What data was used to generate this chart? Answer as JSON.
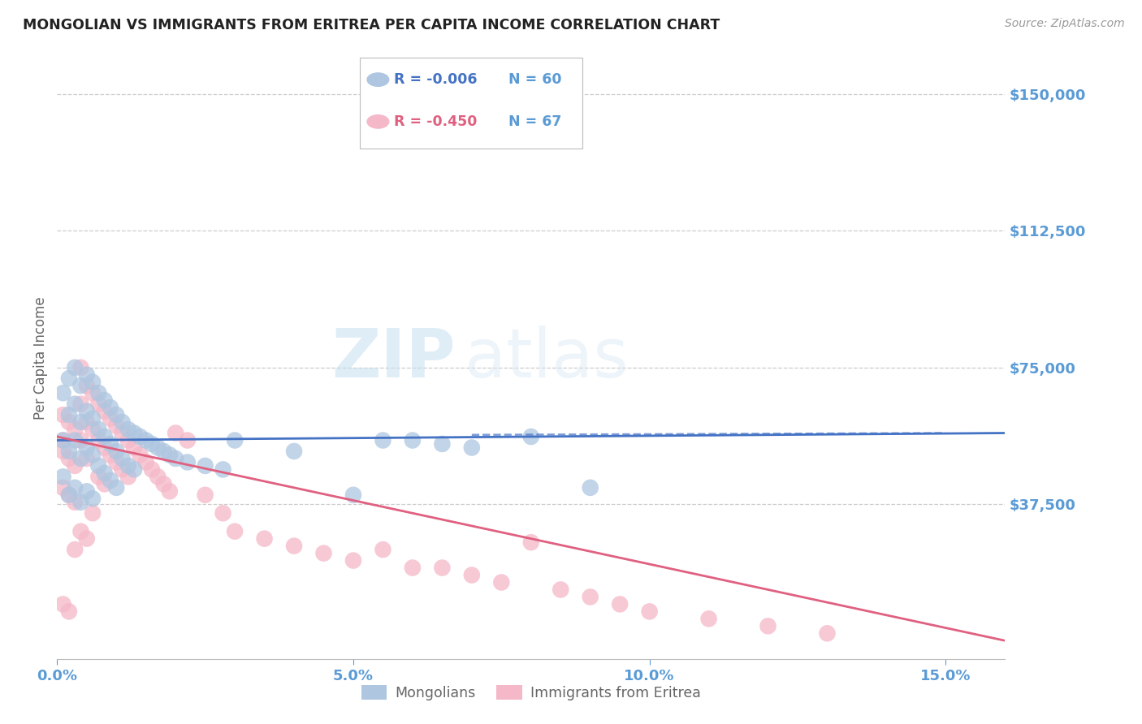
{
  "title": "MONGOLIAN VS IMMIGRANTS FROM ERITREA PER CAPITA INCOME CORRELATION CHART",
  "source": "Source: ZipAtlas.com",
  "ylabel": "Per Capita Income",
  "ytick_labels": [
    "$37,500",
    "$75,000",
    "$112,500",
    "$150,000"
  ],
  "ytick_values": [
    37500,
    75000,
    112500,
    150000
  ],
  "xlim": [
    0.0,
    0.16
  ],
  "ylim": [
    -5000,
    160000
  ],
  "legend1_r": "-0.006",
  "legend1_n": "60",
  "legend2_r": "-0.450",
  "legend2_n": "67",
  "legend_label1": "Mongolians",
  "legend_label2": "Immigrants from Eritrea",
  "color_blue": "#AEC6E0",
  "color_pink": "#F5B8C8",
  "line_color_blue": "#4472C4",
  "line_color_pink": "#E06080",
  "watermark_zip": "ZIP",
  "watermark_atlas": "atlas",
  "title_color": "#222222",
  "axis_color": "#5B9BD5",
  "mongolian_x": [
    0.001,
    0.001,
    0.001,
    0.002,
    0.002,
    0.002,
    0.002,
    0.003,
    0.003,
    0.003,
    0.003,
    0.004,
    0.004,
    0.004,
    0.004,
    0.005,
    0.005,
    0.005,
    0.005,
    0.006,
    0.006,
    0.006,
    0.006,
    0.007,
    0.007,
    0.007,
    0.008,
    0.008,
    0.008,
    0.009,
    0.009,
    0.009,
    0.01,
    0.01,
    0.01,
    0.011,
    0.011,
    0.012,
    0.012,
    0.013,
    0.013,
    0.014,
    0.015,
    0.016,
    0.017,
    0.018,
    0.019,
    0.02,
    0.022,
    0.025,
    0.028,
    0.03,
    0.04,
    0.05,
    0.055,
    0.06,
    0.065,
    0.07,
    0.08,
    0.09
  ],
  "mongolian_y": [
    68000,
    55000,
    45000,
    72000,
    62000,
    52000,
    40000,
    75000,
    65000,
    55000,
    42000,
    70000,
    60000,
    50000,
    38000,
    73000,
    63000,
    53000,
    41000,
    71000,
    61000,
    51000,
    39000,
    68000,
    58000,
    48000,
    66000,
    56000,
    46000,
    64000,
    54000,
    44000,
    62000,
    52000,
    42000,
    60000,
    50000,
    58000,
    48000,
    57000,
    47000,
    56000,
    55000,
    54000,
    53000,
    52000,
    51000,
    50000,
    49000,
    48000,
    47000,
    55000,
    52000,
    40000,
    55000,
    55000,
    54000,
    53000,
    56000,
    42000
  ],
  "eritrea_x": [
    0.001,
    0.001,
    0.001,
    0.001,
    0.002,
    0.002,
    0.002,
    0.002,
    0.003,
    0.003,
    0.003,
    0.003,
    0.004,
    0.004,
    0.004,
    0.004,
    0.005,
    0.005,
    0.005,
    0.005,
    0.006,
    0.006,
    0.006,
    0.007,
    0.007,
    0.007,
    0.008,
    0.008,
    0.008,
    0.009,
    0.009,
    0.01,
    0.01,
    0.011,
    0.011,
    0.012,
    0.012,
    0.013,
    0.014,
    0.015,
    0.016,
    0.017,
    0.018,
    0.019,
    0.02,
    0.022,
    0.025,
    0.028,
    0.03,
    0.035,
    0.04,
    0.045,
    0.05,
    0.055,
    0.06,
    0.065,
    0.07,
    0.075,
    0.08,
    0.085,
    0.09,
    0.095,
    0.1,
    0.11,
    0.12,
    0.13,
    0.001
  ],
  "eritrea_y": [
    62000,
    52000,
    42000,
    10000,
    60000,
    50000,
    40000,
    8000,
    58000,
    48000,
    38000,
    25000,
    75000,
    65000,
    55000,
    30000,
    70000,
    60000,
    50000,
    28000,
    68000,
    58000,
    35000,
    65000,
    55000,
    45000,
    63000,
    53000,
    43000,
    61000,
    51000,
    59000,
    49000,
    57000,
    47000,
    55000,
    45000,
    53000,
    51000,
    49000,
    47000,
    45000,
    43000,
    41000,
    57000,
    55000,
    40000,
    35000,
    30000,
    28000,
    26000,
    24000,
    22000,
    25000,
    20000,
    20000,
    18000,
    16000,
    27000,
    14000,
    12000,
    10000,
    8000,
    6000,
    4000,
    2000,
    55000
  ]
}
